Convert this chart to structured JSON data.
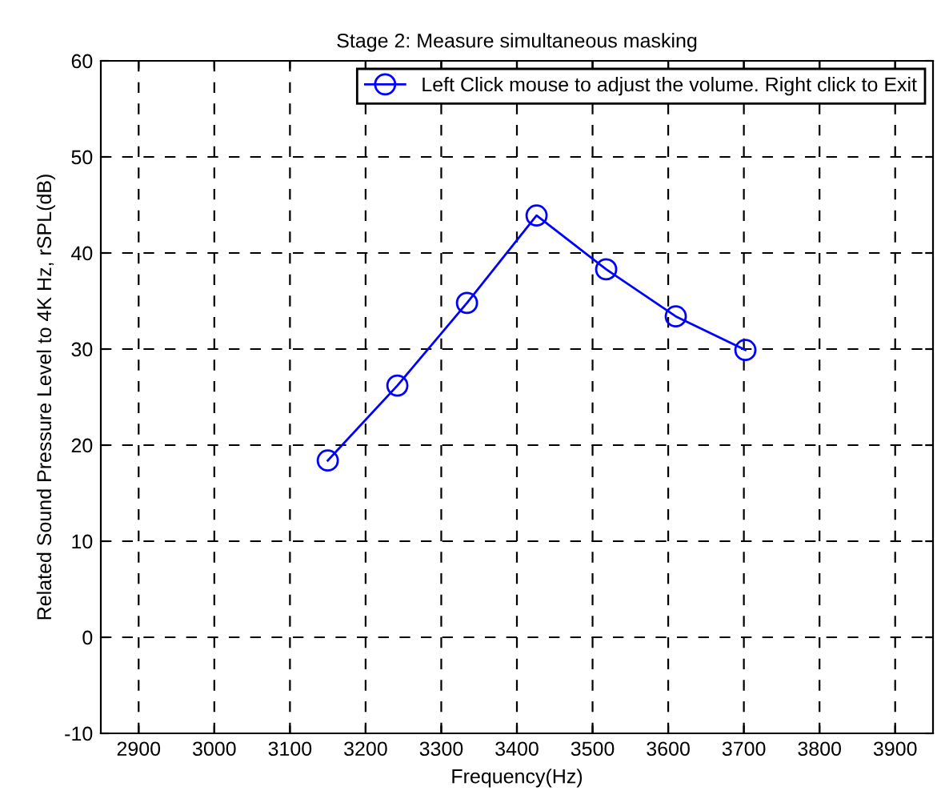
{
  "chart_data": {
    "type": "line",
    "title": "Stage 2: Measure simultaneous masking",
    "xlabel": "Frequency(Hz)",
    "ylabel": "Related Sound Pressure Level to 4K Hz, rSPL(dB)",
    "xlim": [
      2850,
      3950
    ],
    "xticks": [
      2900,
      3000,
      3100,
      3200,
      3300,
      3400,
      3500,
      3600,
      3700,
      3800,
      3900
    ],
    "ylim": [
      -10,
      60
    ],
    "yticks": [
      -10,
      0,
      10,
      20,
      30,
      40,
      50,
      60
    ],
    "series": [
      {
        "name": "Left Click mouse to adjust the volume. Right click to Exit",
        "color": "#0000ff",
        "x": [
          3150,
          3242,
          3334,
          3426,
          3518,
          3610,
          3702
        ],
        "values": [
          18.4,
          26.2,
          34.8,
          43.9,
          38.3,
          33.4,
          29.9
        ]
      }
    ],
    "marker": "circle",
    "line_style": "solid",
    "grid": true,
    "legend": "top right"
  }
}
